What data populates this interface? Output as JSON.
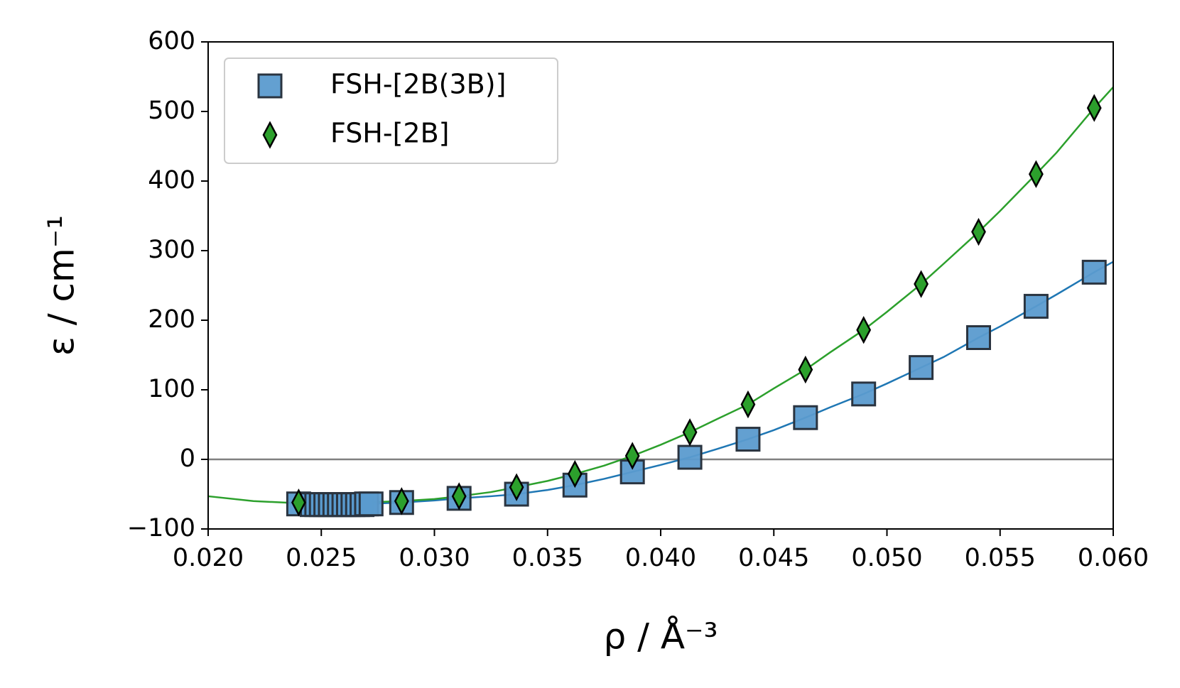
{
  "chart_data": {
    "type": "scatter",
    "x_label": "ρ / Å⁻³",
    "y_label": "ε / cm⁻¹",
    "xlim": [
      0.02,
      0.06
    ],
    "ylim": [
      -100,
      600
    ],
    "xticks": [
      {
        "value": 0.02,
        "label": "0.020"
      },
      {
        "value": 0.025,
        "label": "0.025"
      },
      {
        "value": 0.03,
        "label": "0.030"
      },
      {
        "value": 0.035,
        "label": "0.035"
      },
      {
        "value": 0.04,
        "label": "0.040"
      },
      {
        "value": 0.045,
        "label": "0.045"
      },
      {
        "value": 0.05,
        "label": "0.050"
      },
      {
        "value": 0.055,
        "label": "0.055"
      },
      {
        "value": 0.06,
        "label": "0.060"
      }
    ],
    "yticks": [
      {
        "value": -100,
        "label": "−100"
      },
      0,
      100,
      200,
      300,
      400,
      500,
      600
    ],
    "hline": 0,
    "legend": "upper left",
    "series": [
      {
        "name": "FSH-[2B(3B)]",
        "marker": "square",
        "color": "#5b9bcf",
        "x": [
          0.024,
          0.0246,
          0.0248,
          0.025,
          0.0252,
          0.0254,
          0.0256,
          0.0258,
          0.026,
          0.0262,
          0.0264,
          0.0266,
          0.0268,
          0.027,
          0.0272,
          0.02855,
          0.03109,
          0.03363,
          0.03621,
          0.03875,
          0.04129,
          0.04386,
          0.0464,
          0.04897,
          0.05151,
          0.05405,
          0.05659,
          0.05916
        ],
        "values": [
          -64,
          -65,
          -65,
          -65,
          -65,
          -65,
          -65,
          -65,
          -65,
          -65,
          -65,
          -65,
          -65,
          -64,
          -64,
          -62,
          -56,
          -50,
          -37,
          -18,
          3,
          29,
          60,
          94,
          132,
          175,
          220,
          269
        ]
      },
      {
        "name": "FSH-[2B]",
        "marker": "diamond",
        "color": "#2ca02c",
        "x": [
          0.024,
          0.02855,
          0.03109,
          0.03363,
          0.03621,
          0.03875,
          0.04129,
          0.04386,
          0.0464,
          0.04897,
          0.05151,
          0.05405,
          0.05659,
          0.05916
        ],
        "values": [
          -62,
          -60,
          -53,
          -40,
          -21,
          5,
          39,
          79,
          129,
          186,
          252,
          327,
          410,
          505
        ]
      }
    ],
    "fits": [
      {
        "color": "#1f77b4",
        "x": [
          0.0255,
          0.027,
          0.02855,
          0.03,
          0.03109,
          0.0325,
          0.03363,
          0.035,
          0.03621,
          0.0375,
          0.03875,
          0.04,
          0.04129,
          0.0425,
          0.04386,
          0.045,
          0.0464,
          0.0475,
          0.04897,
          0.05,
          0.05151,
          0.0525,
          0.05405,
          0.055,
          0.05659,
          0.0575,
          0.05916,
          0.06
        ],
        "values": [
          -65,
          -64,
          -62,
          -59,
          -56,
          -53,
          -50,
          -44,
          -37,
          -28,
          -18,
          -8,
          3,
          15,
          29,
          42,
          60,
          75,
          94,
          109,
          132,
          147,
          175,
          191,
          220,
          237,
          269,
          284
        ]
      },
      {
        "color": "#2ca02c",
        "x": [
          0.02,
          0.022,
          0.024,
          0.026,
          0.02855,
          0.03,
          0.03109,
          0.0325,
          0.03363,
          0.035,
          0.03621,
          0.0375,
          0.03875,
          0.04,
          0.04129,
          0.0425,
          0.04386,
          0.045,
          0.0464,
          0.0475,
          0.04897,
          0.05,
          0.05151,
          0.0525,
          0.05405,
          0.055,
          0.05659,
          0.0575,
          0.05916,
          0.06
        ],
        "values": [
          -53,
          -60,
          -63,
          -63,
          -60,
          -57,
          -53,
          -47,
          -40,
          -31,
          -21,
          -9,
          5,
          21,
          39,
          58,
          79,
          102,
          129,
          154,
          186,
          212,
          252,
          281,
          327,
          357,
          410,
          441,
          505,
          535
        ]
      }
    ]
  }
}
